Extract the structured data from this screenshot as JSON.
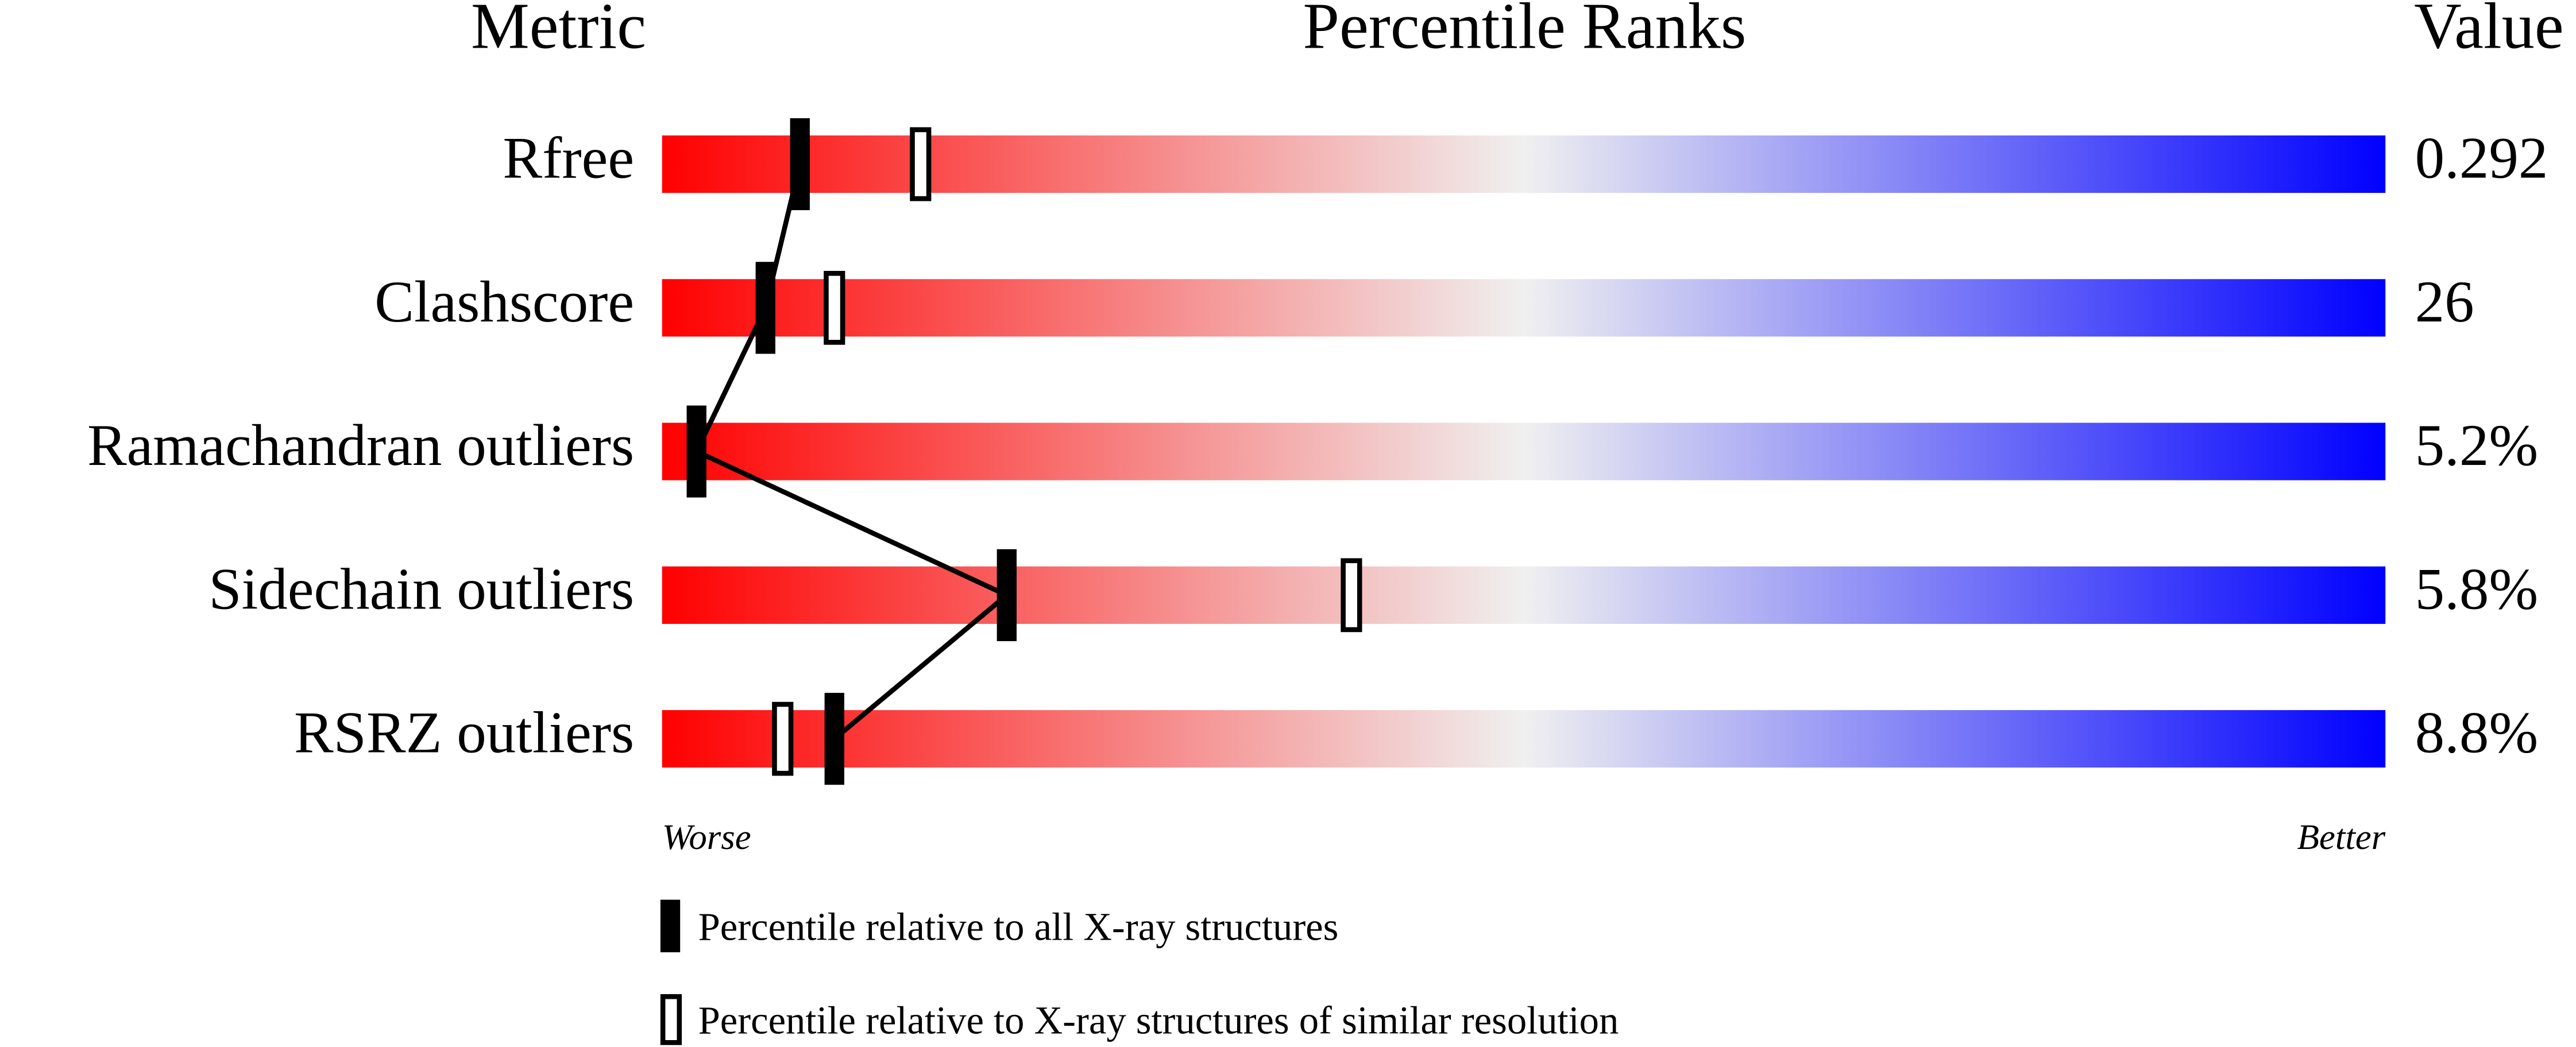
{
  "chart_data": {
    "type": "percentile-slider",
    "headers": {
      "metric": "Metric",
      "ranks": "Percentile Ranks",
      "value": "Value"
    },
    "categories": [
      "Rfree",
      "Clashscore",
      "Ramachandran outliers",
      "Sidechain outliers",
      "RSRZ outliers"
    ],
    "value_labels": [
      "0.292",
      "26",
      "5.2%",
      "5.8%",
      "8.8%"
    ],
    "series": [
      {
        "name": "Percentile relative to all X-ray structures",
        "color": "#000000",
        "filled": true,
        "values": [
          8,
          6,
          2,
          20,
          10
        ]
      },
      {
        "name": "Percentile relative to X-ray structures of similar resolution",
        "color": "#000000",
        "filled": false,
        "values": [
          15,
          10,
          null,
          40,
          7
        ]
      }
    ],
    "xlim": [
      0,
      100
    ],
    "end_labels": {
      "low": "Worse",
      "high": "Better"
    },
    "gradient": [
      "#ff0000",
      "#f0f0f0",
      "#0000ff"
    ]
  }
}
